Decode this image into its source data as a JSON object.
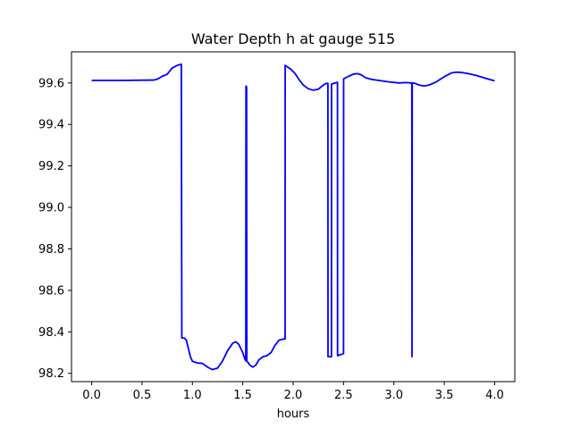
{
  "chart_data": {
    "type": "line",
    "title": "Water Depth h at gauge 515",
    "xlabel": "hours",
    "ylabel": "",
    "xlim": [
      -0.2,
      4.2
    ],
    "ylim": [
      98.16,
      99.75
    ],
    "xticks": [
      0.0,
      0.5,
      1.0,
      1.5,
      2.0,
      2.5,
      3.0,
      3.5,
      4.0
    ],
    "xtick_labels": [
      "0.0",
      "0.5",
      "1.0",
      "1.5",
      "2.0",
      "2.5",
      "3.0",
      "3.5",
      "4.0"
    ],
    "yticks": [
      98.2,
      98.4,
      98.6,
      98.8,
      99.0,
      99.2,
      99.4,
      99.6
    ],
    "ytick_labels": [
      "98.2",
      "98.4",
      "98.6",
      "98.8",
      "99.0",
      "99.2",
      "99.4",
      "99.6"
    ],
    "grid": false,
    "series": [
      {
        "color": "#0000ff",
        "points": [
          [
            0.0,
            99.612
          ],
          [
            0.3,
            99.612
          ],
          [
            0.62,
            99.614
          ],
          [
            0.66,
            99.62
          ],
          [
            0.7,
            99.632
          ],
          [
            0.75,
            99.642
          ],
          [
            0.8,
            99.672
          ],
          [
            0.85,
            99.685
          ],
          [
            0.89,
            99.69
          ],
          [
            0.895,
            98.37
          ],
          [
            0.92,
            98.37
          ],
          [
            0.94,
            98.36
          ],
          [
            0.96,
            98.32
          ],
          [
            0.98,
            98.28
          ],
          [
            1.0,
            98.258
          ],
          [
            1.05,
            98.25
          ],
          [
            1.1,
            98.248
          ],
          [
            1.15,
            98.23
          ],
          [
            1.2,
            98.218
          ],
          [
            1.25,
            98.225
          ],
          [
            1.3,
            98.26
          ],
          [
            1.35,
            98.31
          ],
          [
            1.4,
            98.345
          ],
          [
            1.43,
            98.352
          ],
          [
            1.46,
            98.34
          ],
          [
            1.5,
            98.3
          ],
          [
            1.52,
            98.27
          ],
          [
            1.53,
            98.26
          ],
          [
            1.532,
            99.585
          ],
          [
            1.538,
            99.58
          ],
          [
            1.54,
            98.26
          ],
          [
            1.57,
            98.24
          ],
          [
            1.6,
            98.23
          ],
          [
            1.63,
            98.24
          ],
          [
            1.66,
            98.265
          ],
          [
            1.7,
            98.28
          ],
          [
            1.74,
            98.285
          ],
          [
            1.78,
            98.3
          ],
          [
            1.82,
            98.335
          ],
          [
            1.86,
            98.36
          ],
          [
            1.9,
            98.365
          ],
          [
            1.92,
            98.365
          ],
          [
            1.921,
            99.685
          ],
          [
            1.95,
            99.675
          ],
          [
            1.98,
            99.665
          ],
          [
            2.02,
            99.645
          ],
          [
            2.06,
            99.615
          ],
          [
            2.1,
            99.59
          ],
          [
            2.15,
            99.572
          ],
          [
            2.2,
            99.565
          ],
          [
            2.25,
            99.57
          ],
          [
            2.3,
            99.59
          ],
          [
            2.33,
            99.598
          ],
          [
            2.345,
            99.598
          ],
          [
            2.346,
            98.28
          ],
          [
            2.38,
            98.28
          ],
          [
            2.381,
            99.595
          ],
          [
            2.44,
            99.603
          ],
          [
            2.441,
            98.285
          ],
          [
            2.5,
            98.295
          ],
          [
            2.501,
            99.62
          ],
          [
            2.55,
            99.632
          ],
          [
            2.6,
            99.643
          ],
          [
            2.64,
            99.645
          ],
          [
            2.68,
            99.638
          ],
          [
            2.72,
            99.625
          ],
          [
            2.78,
            99.617
          ],
          [
            2.85,
            99.612
          ],
          [
            2.95,
            99.605
          ],
          [
            3.05,
            99.6
          ],
          [
            3.12,
            99.602
          ],
          [
            3.17,
            99.6
          ],
          [
            3.178,
            99.6
          ],
          [
            3.18,
            98.28
          ],
          [
            3.182,
            99.6
          ],
          [
            3.21,
            99.598
          ],
          [
            3.25,
            99.59
          ],
          [
            3.3,
            99.585
          ],
          [
            3.35,
            99.59
          ],
          [
            3.42,
            99.605
          ],
          [
            3.5,
            99.63
          ],
          [
            3.57,
            99.648
          ],
          [
            3.62,
            99.652
          ],
          [
            3.68,
            99.65
          ],
          [
            3.75,
            99.644
          ],
          [
            3.82,
            99.636
          ],
          [
            3.9,
            99.624
          ],
          [
            4.0,
            99.61
          ]
        ]
      }
    ]
  }
}
